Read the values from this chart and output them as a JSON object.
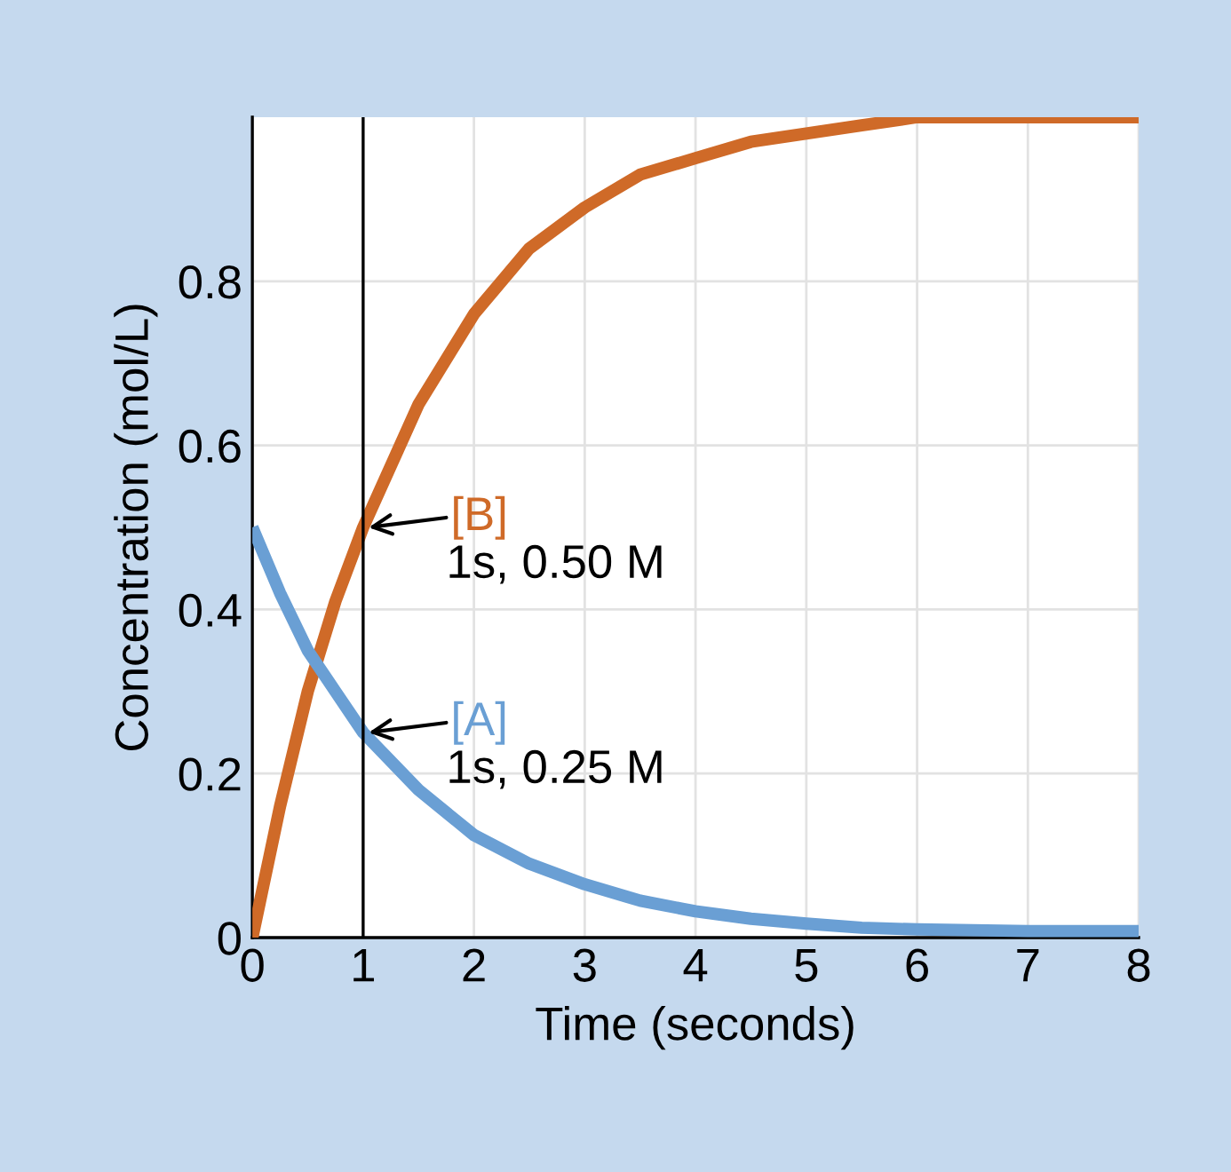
{
  "chart_data": {
    "type": "line",
    "xlabel": "Time (seconds)",
    "ylabel": "Concentration (mol/L)",
    "xlim": [
      0,
      8
    ],
    "ylim": [
      0,
      1.0
    ],
    "xticks": [
      0,
      1,
      2,
      3,
      4,
      5,
      6,
      7,
      8
    ],
    "yticks": [
      0,
      0.2,
      0.4,
      0.6,
      0.8
    ],
    "grid": true,
    "series": [
      {
        "name": "[B]",
        "color": "#cf6a28",
        "x": [
          0,
          0.25,
          0.5,
          0.75,
          1,
          1.5,
          2,
          2.5,
          3,
          3.5,
          4,
          4.5,
          5,
          5.5,
          6,
          7,
          8
        ],
        "values": [
          0,
          0.16,
          0.3,
          0.41,
          0.5,
          0.65,
          0.76,
          0.84,
          0.89,
          0.93,
          0.95,
          0.97,
          0.98,
          0.99,
          1.0,
          1.0,
          1.0
        ]
      },
      {
        "name": "[A]",
        "color": "#6a9fd4",
        "x": [
          0,
          0.25,
          0.5,
          0.75,
          1,
          1.5,
          2,
          2.5,
          3,
          3.5,
          4,
          4.5,
          5,
          5.5,
          6,
          7,
          8
        ],
        "values": [
          0.5,
          0.42,
          0.35,
          0.3,
          0.25,
          0.18,
          0.125,
          0.09,
          0.065,
          0.045,
          0.032,
          0.023,
          0.017,
          0.012,
          0.01,
          0.008,
          0.008
        ]
      }
    ],
    "ref_lines": [
      {
        "axis": "x",
        "value": 1,
        "color": "#000000"
      }
    ],
    "annotations": [
      {
        "text": "1s, 0.50 M",
        "x": 1,
        "y": 0.5
      },
      {
        "text": "1s, 0.25 M",
        "x": 1,
        "y": 0.25
      }
    ]
  }
}
